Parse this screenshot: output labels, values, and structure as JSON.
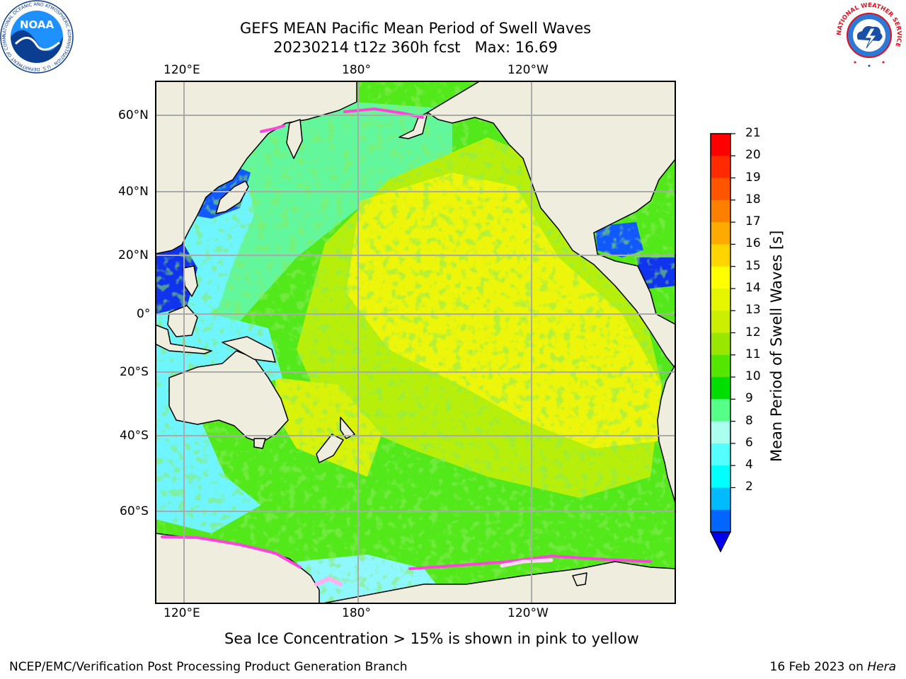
{
  "title": {
    "line1": "GEFS MEAN Pacific Mean Period of Swell Waves",
    "line2": "20230214 t12z 360h fcst   Max: 16.69"
  },
  "logos": {
    "left_text": "NOAA",
    "left_ring": "NATIONAL OCEANIC AND ATMOSPHERIC ADMINISTRATION · U.S. DEPARTMENT OF COMMERCE",
    "right_ring": "NATIONAL WEATHER SERVICE"
  },
  "axes": {
    "lon_ticks": [
      "120°E",
      "180°",
      "120°W"
    ],
    "lat_ticks": [
      "60°N",
      "40°N",
      "20°N",
      "0°",
      "20°S",
      "40°S",
      "60°S"
    ]
  },
  "colorbar": {
    "label": "Mean Period of Swell Waves [s]",
    "ticks": [
      "21",
      "20",
      "19",
      "18",
      "17",
      "16",
      "15",
      "14",
      "13",
      "12",
      "11",
      "10",
      "9",
      "8",
      "6",
      "4",
      "2"
    ],
    "colors": [
      "#ff0000",
      "#ff2a00",
      "#ff5500",
      "#ff7f00",
      "#ffaa00",
      "#ffd400",
      "#ffff00",
      "#e6f500",
      "#ccee00",
      "#99e600",
      "#55e600",
      "#00dd00",
      "#55ff88",
      "#aaffee",
      "#55ffff",
      "#00ffff",
      "#00bbff",
      "#0066ff"
    ],
    "under_color": "#0000ee"
  },
  "map_colors": {
    "land": "#efedde",
    "ocean_yellow": "#ecf50a",
    "ocean_lime": "#b7ef0a",
    "ocean_green": "#52e81a",
    "ocean_mint": "#63f79d",
    "ocean_cyan": "#6ff5ff",
    "ocean_blue": "#1258ff",
    "ice_pink": "#ff44dd"
  },
  "caption": "Sea Ice Concentration > 15% is shown in pink to yellow",
  "footer": {
    "left": "NCEP/EMC/Verification Post Processing Product Generation Branch",
    "right_prefix": "16 Feb 2023 on ",
    "right_host": "Hera"
  }
}
